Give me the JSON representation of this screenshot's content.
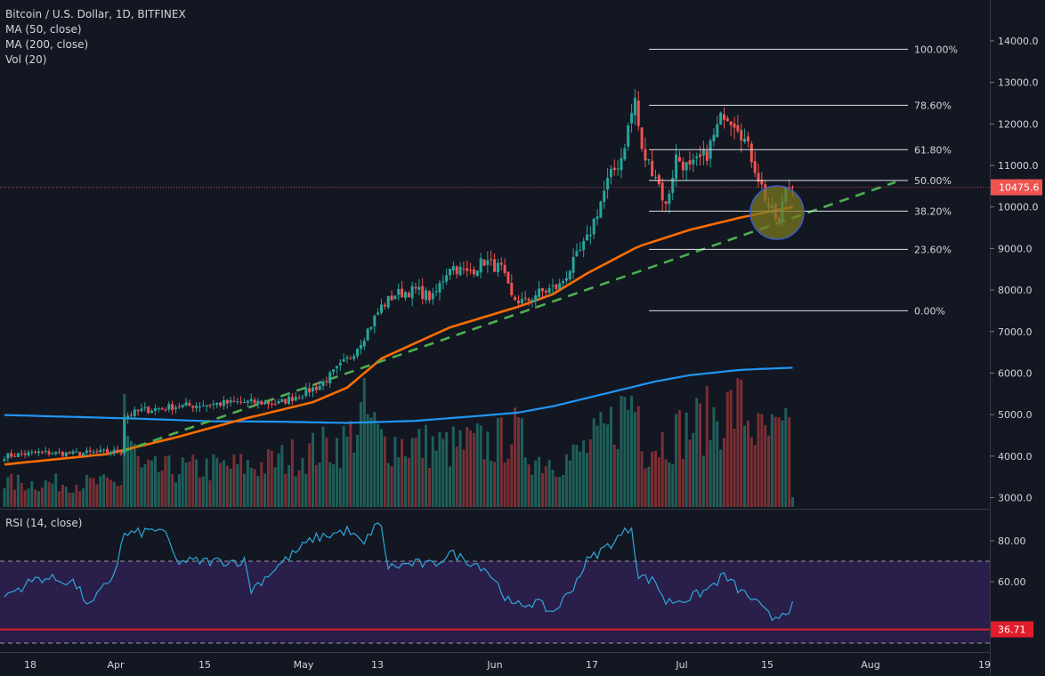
{
  "legend": {
    "title": "Bitcoin / U.S. Dollar, 1D, BITFINEX",
    "ma50": "MA (50, close)",
    "ma200": "MA (200, close)",
    "vol": "Vol (20)",
    "rsi": "RSI (14, close)"
  },
  "colors": {
    "background": "#131722",
    "up": "#26a69a",
    "down": "#ef5350",
    "ma50": "#ff6d00",
    "ma200": "#2196f3",
    "trendline": "#4caf50",
    "rsi_line": "#2ea7d8",
    "rsi_band": "#2a1e4a",
    "support": "#e01e2b"
  },
  "chart_data": {
    "type": "candlestick",
    "symbol": "Bitcoin / U.S. Dollar",
    "interval": "1D",
    "exchange": "BITFINEX",
    "y_axis": {
      "ticks": [
        "14000.0",
        "13000.0",
        "12000.0",
        "11000.0",
        "10000.0",
        "9000.0",
        "8000.0",
        "7000.0",
        "6000.0",
        "5000.0",
        "4000.0",
        "3000.0"
      ],
      "range": [
        2900,
        14300
      ]
    },
    "x_axis": {
      "ticks": [
        "18",
        "Apr",
        "15",
        "May",
        "13",
        "Jun",
        "17",
        "Jul",
        "15",
        "Aug",
        "19"
      ]
    },
    "last_price": "10475.6",
    "close_keyframes": [
      [
        0,
        4000
      ],
      [
        10,
        4090
      ],
      [
        20,
        4060
      ],
      [
        30,
        4100
      ],
      [
        34,
        4110
      ],
      [
        35,
        4960
      ],
      [
        40,
        5100
      ],
      [
        50,
        5200
      ],
      [
        60,
        5250
      ],
      [
        70,
        5300
      ],
      [
        75,
        5290
      ],
      [
        80,
        5270
      ],
      [
        88,
        5550
      ],
      [
        92,
        5700
      ],
      [
        101,
        6400
      ],
      [
        105,
        6900
      ],
      [
        110,
        7600
      ],
      [
        114,
        7900
      ],
      [
        120,
        8000
      ],
      [
        125,
        7800
      ],
      [
        130,
        8600
      ],
      [
        135,
        8400
      ],
      [
        140,
        8700
      ],
      [
        145,
        8500
      ],
      [
        148,
        7800
      ],
      [
        152,
        7700
      ],
      [
        155,
        7900
      ],
      [
        162,
        8100
      ],
      [
        170,
        9200
      ],
      [
        176,
        10600
      ],
      [
        180,
        11200
      ],
      [
        184,
        12600
      ],
      [
        186,
        11300
      ],
      [
        190,
        10800
      ],
      [
        193,
        10000
      ],
      [
        196,
        11200
      ],
      [
        200,
        10900
      ],
      [
        205,
        11300
      ],
      [
        210,
        12300
      ],
      [
        214,
        12000
      ],
      [
        218,
        11200
      ],
      [
        223,
        10000
      ],
      [
        226,
        9600
      ],
      [
        228,
        10500
      ],
      [
        230,
        10475
      ]
    ],
    "ma50_keyframes": [
      [
        0,
        3800
      ],
      [
        30,
        4050
      ],
      [
        50,
        4450
      ],
      [
        70,
        4900
      ],
      [
        90,
        5300
      ],
      [
        100,
        5650
      ],
      [
        110,
        6350
      ],
      [
        130,
        7100
      ],
      [
        150,
        7600
      ],
      [
        160,
        7900
      ],
      [
        170,
        8400
      ],
      [
        185,
        9050
      ],
      [
        200,
        9450
      ],
      [
        215,
        9750
      ],
      [
        230,
        10000
      ]
    ],
    "ma200_keyframes": [
      [
        0,
        4990
      ],
      [
        40,
        4900
      ],
      [
        60,
        4840
      ],
      [
        80,
        4830
      ],
      [
        100,
        4800
      ],
      [
        120,
        4850
      ],
      [
        140,
        4980
      ],
      [
        150,
        5050
      ],
      [
        160,
        5200
      ],
      [
        170,
        5400
      ],
      [
        180,
        5600
      ],
      [
        190,
        5800
      ],
      [
        200,
        5950
      ],
      [
        215,
        6080
      ],
      [
        230,
        6130
      ]
    ],
    "volume_keyframes": [
      [
        0,
        0.2
      ],
      [
        34,
        0.2
      ],
      [
        35,
        0.95
      ],
      [
        36,
        0.6
      ],
      [
        40,
        0.3
      ],
      [
        75,
        0.35
      ],
      [
        100,
        0.55
      ],
      [
        105,
        0.8
      ],
      [
        110,
        0.55
      ],
      [
        130,
        0.5
      ],
      [
        145,
        0.55
      ],
      [
        148,
        0.65
      ],
      [
        155,
        0.4
      ],
      [
        165,
        0.4
      ],
      [
        175,
        0.6
      ],
      [
        183,
        0.9
      ],
      [
        185,
        0.85
      ],
      [
        187,
        0.5
      ],
      [
        195,
        0.6
      ],
      [
        215,
        0.85
      ],
      [
        220,
        0.6
      ],
      [
        228,
        0.6
      ],
      [
        229,
        0.65
      ],
      [
        230,
        0.1
      ]
    ],
    "rsi": {
      "levels": [
        "80.00",
        "60.00"
      ],
      "overbought": 70,
      "oversold": 30,
      "support_label": "36.71",
      "keyframes": [
        [
          0,
          53
        ],
        [
          10,
          62
        ],
        [
          20,
          60
        ],
        [
          25,
          48
        ],
        [
          32,
          64
        ],
        [
          34,
          77
        ],
        [
          35,
          83
        ],
        [
          40,
          84
        ],
        [
          45,
          86
        ],
        [
          48,
          80
        ],
        [
          50,
          70
        ],
        [
          60,
          70
        ],
        [
          70,
          70
        ],
        [
          72,
          56
        ],
        [
          80,
          68
        ],
        [
          90,
          81
        ],
        [
          100,
          85
        ],
        [
          105,
          78
        ],
        [
          108,
          88
        ],
        [
          110,
          86
        ],
        [
          112,
          67
        ],
        [
          120,
          69
        ],
        [
          125,
          68
        ],
        [
          130,
          74
        ],
        [
          140,
          67
        ],
        [
          143,
          61
        ],
        [
          148,
          48
        ],
        [
          155,
          50
        ],
        [
          160,
          45
        ],
        [
          165,
          55
        ],
        [
          170,
          70
        ],
        [
          178,
          80
        ],
        [
          183,
          87
        ],
        [
          185,
          63
        ],
        [
          190,
          60
        ],
        [
          193,
          50
        ],
        [
          200,
          52
        ],
        [
          205,
          56
        ],
        [
          210,
          63
        ],
        [
          215,
          55
        ],
        [
          218,
          52
        ],
        [
          222,
          45
        ],
        [
          224,
          42
        ],
        [
          227,
          45
        ],
        [
          230,
          48
        ]
      ]
    },
    "fibonacci": [
      {
        "level": "100.00%",
        "price": 13800
      },
      {
        "level": "78.60%",
        "price": 12450
      },
      {
        "level": "61.80%",
        "price": 11380
      },
      {
        "level": "50.00%",
        "price": 10640
      },
      {
        "level": "38.20%",
        "price": 9900
      },
      {
        "level": "23.60%",
        "price": 8980
      },
      {
        "level": "0.00%",
        "price": 7500
      }
    ],
    "trendline": {
      "from": [
        34,
        4100
      ],
      "to": [
        260,
        10600
      ]
    }
  }
}
